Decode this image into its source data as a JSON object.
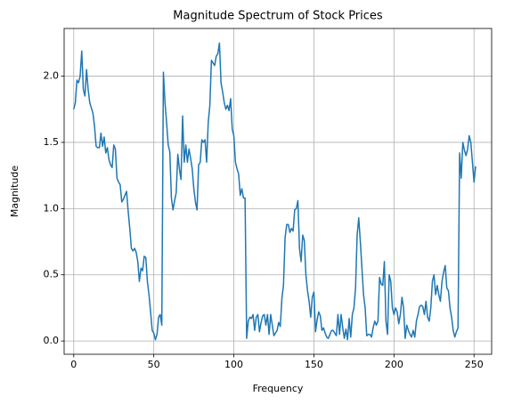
{
  "chart_data": {
    "type": "line",
    "title": "Magnitude Spectrum of Stock Prices",
    "xlabel": "Frequency",
    "ylabel": "Magnitude",
    "x": [
      0,
      1,
      2,
      3,
      4,
      5,
      6,
      7,
      8,
      9,
      10,
      11,
      12,
      13,
      14,
      15,
      16,
      17,
      18,
      19,
      20,
      21,
      22,
      23,
      24,
      25,
      26,
      27,
      28,
      29,
      30,
      31,
      32,
      33,
      34,
      35,
      36,
      37,
      38,
      39,
      40,
      41,
      42,
      43,
      44,
      45,
      46,
      47,
      48,
      49,
      50,
      51,
      52,
      53,
      54,
      55,
      56,
      57,
      58,
      59,
      60,
      61,
      62,
      63,
      64,
      65,
      66,
      67,
      68,
      69,
      70,
      71,
      72,
      73,
      74,
      75,
      76,
      77,
      78,
      79,
      80,
      81,
      82,
      83,
      84,
      85,
      86,
      87,
      88,
      89,
      90,
      91,
      92,
      93,
      94,
      95,
      96,
      97,
      98,
      99,
      100,
      101,
      102,
      103,
      104,
      105,
      106,
      107,
      108,
      109,
      110,
      111,
      112,
      113,
      114,
      115,
      116,
      117,
      118,
      119,
      120,
      121,
      122,
      123,
      124,
      125,
      126,
      127,
      128,
      129,
      130,
      131,
      132,
      133,
      134,
      135,
      136,
      137,
      138,
      139,
      140,
      141,
      142,
      143,
      144,
      145,
      146,
      147,
      148,
      149,
      150,
      151,
      152,
      153,
      154,
      155,
      156,
      157,
      158,
      159,
      160,
      161,
      162,
      163,
      164,
      165,
      166,
      167,
      168,
      169,
      170,
      171,
      172,
      173,
      174,
      175,
      176,
      177,
      178,
      179,
      180,
      181,
      182,
      183,
      184,
      185,
      186,
      187,
      188,
      189,
      190,
      191,
      192,
      193,
      194,
      195,
      196,
      197,
      198,
      199,
      200,
      201,
      202,
      203,
      204,
      205,
      206,
      207,
      208,
      209,
      210,
      211,
      212,
      213,
      214,
      215,
      216,
      217,
      218,
      219,
      220,
      221,
      222,
      223,
      224,
      225,
      226,
      227,
      228,
      229,
      230,
      231,
      232,
      233,
      234,
      235,
      236,
      237,
      238,
      239,
      240,
      241,
      242,
      243,
      244,
      245,
      246,
      247,
      248,
      249,
      250,
      251
    ],
    "series": [
      {
        "name": "Magnitude",
        "color": "#1f77b4",
        "values": [
          1.75,
          1.8,
          1.97,
          1.95,
          2.0,
          2.19,
          1.9,
          1.85,
          2.05,
          1.9,
          1.8,
          1.76,
          1.72,
          1.62,
          1.47,
          1.46,
          1.46,
          1.57,
          1.47,
          1.54,
          1.42,
          1.46,
          1.37,
          1.33,
          1.31,
          1.48,
          1.45,
          1.23,
          1.2,
          1.18,
          1.05,
          1.07,
          1.1,
          1.13,
          0.98,
          0.85,
          0.7,
          0.68,
          0.7,
          0.67,
          0.6,
          0.45,
          0.55,
          0.53,
          0.64,
          0.63,
          0.45,
          0.35,
          0.22,
          0.08,
          0.06,
          0.01,
          0.05,
          0.18,
          0.2,
          0.12,
          2.03,
          1.8,
          1.65,
          1.48,
          1.43,
          1.08,
          0.99,
          1.06,
          1.12,
          1.41,
          1.3,
          1.22,
          1.7,
          1.35,
          1.48,
          1.35,
          1.45,
          1.38,
          1.3,
          1.15,
          1.05,
          0.99,
          1.33,
          1.35,
          1.52,
          1.5,
          1.52,
          1.35,
          1.65,
          1.78,
          2.12,
          2.1,
          2.08,
          2.15,
          2.17,
          2.25,
          1.95,
          1.88,
          1.8,
          1.75,
          1.78,
          1.74,
          1.83,
          1.6,
          1.55,
          1.35,
          1.3,
          1.26,
          1.1,
          1.15,
          1.08,
          1.08,
          0.02,
          0.15,
          0.18,
          0.17,
          0.2,
          0.08,
          0.18,
          0.2,
          0.07,
          0.14,
          0.19,
          0.2,
          0.12,
          0.2,
          0.05,
          0.2,
          0.12,
          0.04,
          0.06,
          0.08,
          0.14,
          0.11,
          0.32,
          0.42,
          0.78,
          0.88,
          0.88,
          0.82,
          0.85,
          0.83,
          0.99,
          1.0,
          1.06,
          0.7,
          0.6,
          0.8,
          0.76,
          0.5,
          0.38,
          0.3,
          0.18,
          0.33,
          0.37,
          0.07,
          0.16,
          0.22,
          0.19,
          0.08,
          0.1,
          0.06,
          0.03,
          0.02,
          0.05,
          0.08,
          0.08,
          0.06,
          0.04,
          0.2,
          0.05,
          0.2,
          0.1,
          0.02,
          0.09,
          0.01,
          0.17,
          0.03,
          0.2,
          0.25,
          0.4,
          0.8,
          0.93,
          0.75,
          0.55,
          0.35,
          0.25,
          0.04,
          0.05,
          0.05,
          0.03,
          0.1,
          0.15,
          0.12,
          0.15,
          0.48,
          0.43,
          0.42,
          0.6,
          0.15,
          0.05,
          0.5,
          0.45,
          0.25,
          0.2,
          0.25,
          0.22,
          0.13,
          0.2,
          0.33,
          0.25,
          0.02,
          0.12,
          0.08,
          0.05,
          0.03,
          0.08,
          0.03,
          0.15,
          0.2,
          0.26,
          0.27,
          0.26,
          0.2,
          0.3,
          0.18,
          0.15,
          0.25,
          0.45,
          0.5,
          0.35,
          0.42,
          0.35,
          0.3,
          0.45,
          0.52,
          0.57,
          0.4,
          0.38,
          0.25,
          0.18,
          0.08,
          0.03,
          0.07,
          0.1,
          1.42,
          1.23,
          1.5,
          1.44,
          1.4,
          1.45,
          1.55,
          1.5,
          1.35,
          1.2,
          1.32
        ]
      }
    ],
    "xlim": [
      -6,
      261
    ],
    "xticks": [
      0,
      50,
      100,
      150,
      200,
      250
    ],
    "ylim": [
      -0.1,
      2.36
    ],
    "yticks": [
      {
        "value": 0,
        "label": "0.0"
      },
      0.5,
      {
        "value": 1,
        "label": "1.0"
      },
      1.5,
      {
        "value": 2,
        "label": "2.0"
      }
    ],
    "grid": true
  }
}
